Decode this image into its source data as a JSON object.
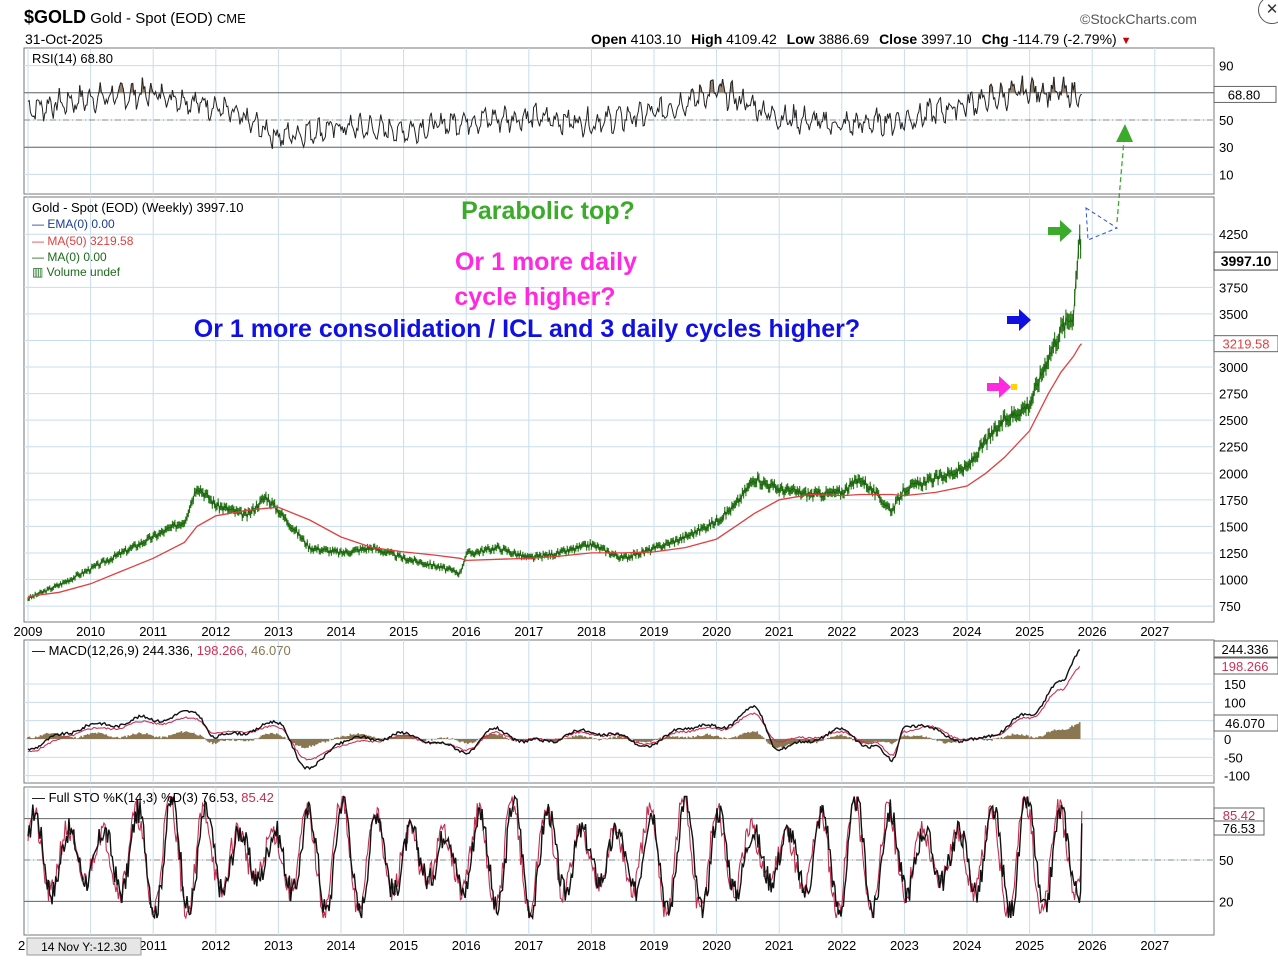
{
  "header": {
    "symbol": "$GOLD",
    "name": "Gold - Spot (EOD)",
    "exchange": "CME",
    "date": "31-Oct-2025",
    "brand": "StockCharts.com",
    "brand_symbol": "©",
    "open_label": "Open",
    "open": "4103.10",
    "high_label": "High",
    "high": "4109.42",
    "low_label": "Low",
    "low": "3886.69",
    "close_label": "Close",
    "close": "3997.10",
    "chg_label": "Chg",
    "chg": "-114.79 (-2.79%)",
    "chg_arrow": "▼",
    "close_icon": "✕"
  },
  "rsi_panel": {
    "legend": "RSI(14) 68.80",
    "ticks": [
      "90",
      "70",
      "50",
      "30",
      "10"
    ],
    "value_badge": "68.80"
  },
  "price_panel": {
    "legend_title": "Gold - Spot (EOD) (Weekly) 3997.10",
    "legend_ema": "EMA(0) 0.00",
    "legend_ma50": "MA(50) 3219.58",
    "legend_ma0": "MA(0) 0.00",
    "legend_volume": "Volume undef",
    "price_badge": "3997.10",
    "ma_badge": "3219.58",
    "annotation_1": "Parabolic top?",
    "annotation_2a": "Or 1 more daily",
    "annotation_2b": "cycle higher?",
    "annotation_3": "Or 1 more consolidation / ICL and 3 daily cycles higher?"
  },
  "macd_panel": {
    "legend_label": "MACD(12,26,9)",
    "legend_macd": "244.336",
    "legend_signal": "198.266",
    "legend_hist": "46.070",
    "badge_macd": "244.336",
    "badge_signal": "198.266",
    "badge_hist": "46.070"
  },
  "sto_panel": {
    "legend_label": "Full STO %K(14,3) %D(3)",
    "legend_k": "76.53",
    "legend_d": "85.42",
    "badge_d": "85.42",
    "badge_k": "76.53",
    "ticks": [
      "50",
      "20"
    ]
  },
  "footer": {
    "tooltip": "14 Nov Y:-12.30",
    "tooltip_prefix": "2"
  },
  "colors": {
    "grid": "#c8ddef",
    "price": "#2e7d1e",
    "ma": "#e04040",
    "macd": "#111111",
    "signal": "#cc3355",
    "hist": "#8a7650",
    "rsi_fill": "#9a8570",
    "anno_green": "#3caa2a",
    "anno_magenta": "#ff2adf",
    "anno_blue": "#1010e0"
  },
  "chart_data": [
    {
      "type": "line",
      "panel": "RSI(14)",
      "ylim": [
        0,
        100
      ],
      "reference_lines": [
        70,
        50,
        30
      ],
      "last_value": 68.8,
      "x": [
        "2009",
        "2010",
        "2011",
        "2012",
        "2013",
        "2014",
        "2015",
        "2016",
        "2017",
        "2018",
        "2019",
        "2020",
        "2021",
        "2022",
        "2023",
        "2024",
        "2025",
        "2025-10-31"
      ],
      "series": [
        {
          "name": "RSI(14)",
          "values": [
            58,
            66,
            70,
            60,
            38,
            45,
            42,
            50,
            52,
            48,
            55,
            72,
            52,
            46,
            50,
            62,
            72,
            68.8
          ]
        }
      ]
    },
    {
      "type": "line",
      "panel": "price",
      "ylim": [
        600,
        4600
      ],
      "yticks": [
        750,
        1000,
        1250,
        1500,
        1750,
        2000,
        2250,
        2500,
        2750,
        3000,
        3250,
        3500,
        3750,
        4250
      ],
      "x": [
        "2009",
        "2009.5",
        "2010",
        "2010.5",
        "2011",
        "2011.5",
        "2011.7",
        "2012",
        "2012.5",
        "2012.8",
        "2013",
        "2013.5",
        "2014",
        "2014.5",
        "2015",
        "2015.5",
        "2015.9",
        "2016",
        "2016.5",
        "2017",
        "2017.5",
        "2018",
        "2018.5",
        "2019",
        "2019.5",
        "2020",
        "2020.3",
        "2020.6",
        "2021",
        "2021.5",
        "2022",
        "2022.3",
        "2022.8",
        "2023",
        "2023.5",
        "2024",
        "2024.3",
        "2024.6",
        "2025",
        "2025.3",
        "2025.5",
        "2025.7",
        "2025.8",
        "2025.83"
      ],
      "xticks": [
        "2009",
        "2010",
        "2011",
        "2012",
        "2013",
        "2014",
        "2015",
        "2016",
        "2017",
        "2018",
        "2019",
        "2020",
        "2021",
        "2022",
        "2023",
        "2024",
        "2025",
        "2026",
        "2027"
      ],
      "series": [
        {
          "name": "Gold - Spot (EOD) (Weekly)",
          "values": [
            820,
            950,
            1100,
            1250,
            1400,
            1550,
            1880,
            1700,
            1600,
            1780,
            1650,
            1300,
            1250,
            1300,
            1200,
            1130,
            1060,
            1240,
            1300,
            1200,
            1250,
            1330,
            1200,
            1290,
            1400,
            1550,
            1700,
            1950,
            1850,
            1800,
            1820,
            1950,
            1650,
            1850,
            1950,
            2050,
            2300,
            2500,
            2650,
            3100,
            3350,
            3500,
            4300,
            3997.1
          ]
        },
        {
          "name": "MA(50)",
          "values": [
            840,
            880,
            960,
            1080,
            1200,
            1350,
            1500,
            1600,
            1650,
            1670,
            1680,
            1560,
            1400,
            1300,
            1260,
            1230,
            1200,
            1180,
            1190,
            1200,
            1220,
            1250,
            1250,
            1260,
            1300,
            1380,
            1500,
            1620,
            1750,
            1800,
            1790,
            1800,
            1800,
            1790,
            1820,
            1880,
            2000,
            2150,
            2400,
            2750,
            2950,
            3100,
            3200,
            3219.58
          ]
        }
      ],
      "annotations": [
        "Parabolic top?",
        "Or 1 more daily cycle higher?",
        "Or 1 more consolidation / ICL and 3 daily cycles higher?"
      ]
    },
    {
      "type": "line",
      "panel": "MACD(12,26,9)",
      "ylim": [
        -120,
        270
      ],
      "yticks": [
        150,
        100,
        50,
        0,
        -50,
        -100
      ],
      "x": [
        "2009",
        "2010",
        "2011",
        "2011.7",
        "2012",
        "2013",
        "2013.5",
        "2014",
        "2015",
        "2016",
        "2016.5",
        "2017",
        "2018",
        "2019",
        "2019.5",
        "2020",
        "2020.6",
        "2021",
        "2022",
        "2022.5",
        "2022.8",
        "2023",
        "2023.5",
        "2024",
        "2024.5",
        "2025",
        "2025.5",
        "2025.8"
      ],
      "series": [
        {
          "name": "MACD",
          "values": [
            -20,
            35,
            55,
            70,
            5,
            40,
            -85,
            -5,
            10,
            -30,
            25,
            -10,
            20,
            -15,
            35,
            30,
            80,
            -25,
            20,
            -20,
            -60,
            40,
            25,
            -10,
            20,
            70,
            150,
            244.336
          ]
        },
        {
          "name": "Signal",
          "values": [
            -30,
            25,
            45,
            55,
            15,
            30,
            -60,
            -15,
            5,
            -25,
            15,
            -5,
            15,
            -10,
            25,
            25,
            65,
            -5,
            15,
            -10,
            -45,
            25,
            30,
            -5,
            15,
            60,
            130,
            198.266
          ]
        },
        {
          "name": "Histogram",
          "values": [
            10,
            10,
            10,
            15,
            -10,
            10,
            -25,
            10,
            5,
            -5,
            10,
            -5,
            5,
            -5,
            10,
            5,
            15,
            -20,
            5,
            -10,
            -15,
            15,
            -5,
            -5,
            5,
            10,
            20,
            46.07
          ]
        }
      ]
    },
    {
      "type": "line",
      "panel": "Full STO %K(14,3) %D(3)",
      "ylim": [
        0,
        100
      ],
      "reference_lines": [
        80,
        50,
        20
      ],
      "x": [
        "2009",
        "2010",
        "2011",
        "2012",
        "2013",
        "2014",
        "2015",
        "2016",
        "2017",
        "2018",
        "2019",
        "2020",
        "2021",
        "2022",
        "2023",
        "2024",
        "2025",
        "2025-10-31"
      ],
      "series": [
        {
          "name": "%K",
          "values": [
            30,
            85,
            88,
            90,
            25,
            70,
            20,
            60,
            15,
            80,
            18,
            90,
            25,
            85,
            20,
            88,
            80,
            76.53
          ]
        },
        {
          "name": "%D",
          "values": [
            35,
            80,
            85,
            85,
            30,
            65,
            25,
            55,
            20,
            75,
            22,
            85,
            30,
            80,
            25,
            85,
            82,
            85.42
          ]
        }
      ]
    }
  ]
}
